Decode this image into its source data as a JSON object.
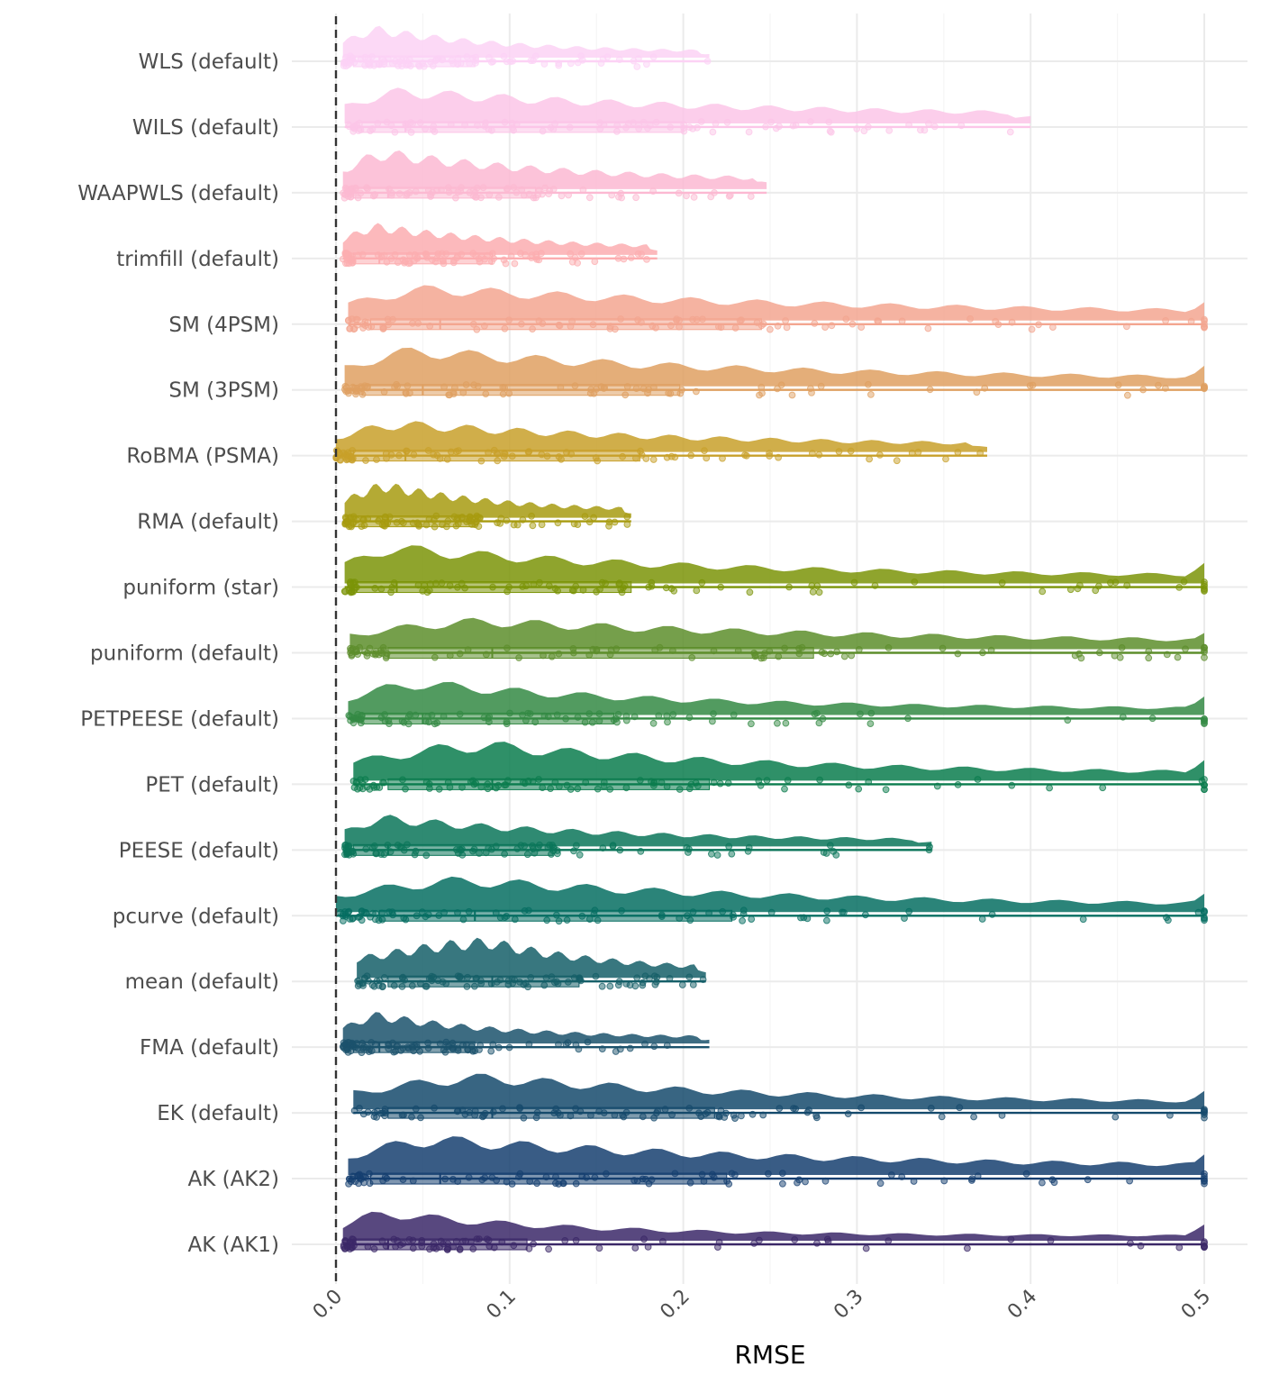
{
  "chart_data": {
    "type": "raincloud",
    "xlabel": "RMSE",
    "ylabel": "",
    "xlim": [
      0,
      0.5
    ],
    "x_ticks": [
      "0.0",
      "0.1",
      "0.2",
      "0.3",
      "0.4",
      "0.5"
    ],
    "reference_line_x": 0,
    "grid": true,
    "legend": "none",
    "series": [
      {
        "name": "WLS (default)",
        "color": "#fcd2f5",
        "min": 0.004,
        "q1": 0.01,
        "median": 0.025,
        "q3": 0.08,
        "max": 0.215
      },
      {
        "name": "WILS (default)",
        "color": "#fcc5e8",
        "min": 0.005,
        "q1": 0.015,
        "median": 0.04,
        "q3": 0.2,
        "max": 0.4
      },
      {
        "name": "WAAPWLS (default)",
        "color": "#fcb9d2",
        "min": 0.004,
        "q1": 0.01,
        "median": 0.03,
        "q3": 0.115,
        "max": 0.248
      },
      {
        "name": "trimfill (default)",
        "color": "#fcadb0",
        "min": 0.004,
        "q1": 0.01,
        "median": 0.025,
        "q3": 0.09,
        "max": 0.185
      },
      {
        "name": "SM (4PSM)",
        "color": "#f3a690",
        "min": 0.007,
        "q1": 0.02,
        "median": 0.06,
        "q3": 0.245,
        "max": 0.5
      },
      {
        "name": "SM (3PSM)",
        "color": "#dfa062",
        "min": 0.005,
        "q1": 0.015,
        "median": 0.05,
        "q3": 0.198,
        "max": 0.5
      },
      {
        "name": "RoBMA (PSMA)",
        "color": "#c8a02a",
        "min": 0.0,
        "q1": 0.01,
        "median": 0.04,
        "q3": 0.175,
        "max": 0.375
      },
      {
        "name": "RMA (default)",
        "color": "#a79b10",
        "min": 0.005,
        "q1": 0.01,
        "median": 0.03,
        "q3": 0.08,
        "max": 0.17
      },
      {
        "name": "puniform (star)",
        "color": "#7b9408",
        "min": 0.005,
        "q1": 0.012,
        "median": 0.035,
        "q3": 0.17,
        "max": 0.5
      },
      {
        "name": "puniform (default)",
        "color": "#5d8e2c",
        "min": 0.008,
        "q1": 0.03,
        "median": 0.09,
        "q3": 0.275,
        "max": 0.5
      },
      {
        "name": "PETPEESE (default)",
        "color": "#348a44",
        "min": 0.007,
        "q1": 0.015,
        "median": 0.05,
        "q3": 0.16,
        "max": 0.5
      },
      {
        "name": "PET (default)",
        "color": "#0b7c4e",
        "min": 0.01,
        "q1": 0.03,
        "median": 0.09,
        "q3": 0.215,
        "max": 0.5
      },
      {
        "name": "PEESE (default)",
        "color": "#0b7559",
        "min": 0.005,
        "q1": 0.01,
        "median": 0.03,
        "q3": 0.125,
        "max": 0.343
      },
      {
        "name": "pcurve (default)",
        "color": "#066e62",
        "min": 0.0,
        "q1": 0.025,
        "median": 0.08,
        "q3": 0.228,
        "max": 0.5
      },
      {
        "name": "mean (default)",
        "color": "#155f68",
        "min": 0.012,
        "q1": 0.03,
        "median": 0.09,
        "q3": 0.14,
        "max": 0.213
      },
      {
        "name": "FMA (default)",
        "color": "#1b526c",
        "min": 0.004,
        "q1": 0.01,
        "median": 0.025,
        "q3": 0.08,
        "max": 0.215
      },
      {
        "name": "EK (default)",
        "color": "#154a6c",
        "min": 0.01,
        "q1": 0.03,
        "median": 0.09,
        "q3": 0.218,
        "max": 0.5
      },
      {
        "name": "AK (AK2)",
        "color": "#163f70",
        "min": 0.007,
        "q1": 0.02,
        "median": 0.06,
        "q3": 0.225,
        "max": 0.5
      },
      {
        "name": "AK (AK1)",
        "color": "#3b2868",
        "min": 0.004,
        "q1": 0.01,
        "median": 0.03,
        "q3": 0.11,
        "max": 0.5
      }
    ]
  }
}
